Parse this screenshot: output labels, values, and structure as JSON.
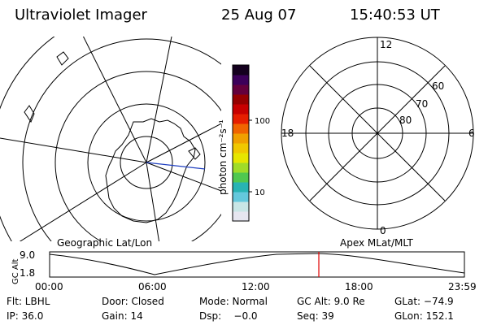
{
  "header": {
    "title": "Ultraviolet Imager",
    "date": "25 Aug 07",
    "time": "15:40:53 UT"
  },
  "colorbar": {
    "unit_label": "photon cm⁻²s⁻¹",
    "tick_high": "100",
    "tick_low": "10",
    "colors": [
      "#e6e6f0",
      "#c8e6e6",
      "#64c8dc",
      "#28b4b4",
      "#50c850",
      "#a0dc28",
      "#e6e600",
      "#f0c800",
      "#f0a000",
      "#f06400",
      "#e61e00",
      "#c80000",
      "#960000",
      "#64003c",
      "#3c005a",
      "#14001e"
    ]
  },
  "polar_plot": {
    "lat_labels": [
      "60",
      "70",
      "80"
    ],
    "mlt_labels": {
      "top": "12",
      "left": "18",
      "right": "6",
      "bottom": "0"
    }
  },
  "left_panel_label": "Geographic Lat/Lon",
  "right_panel_label": "Apex MLat/MLT",
  "altitude_plot": {
    "ylabel": "GC Alt",
    "y_ticks": [
      "9.0",
      "1.8"
    ],
    "x_ticks": [
      "00:00",
      "06:00",
      "12:00",
      "18:00",
      "23:59"
    ],
    "marker_color": "#e00000"
  },
  "info": {
    "row1": [
      "Flt: LBHL",
      "Door: Closed",
      "Mode: Normal",
      "GC Alt: 9.0 Re",
      "GLat: −74.9"
    ],
    "row2": [
      "IP: 36.0",
      "Gain: 14",
      "Dsp:    −0.0",
      "Seq: 39",
      "GLon: 152.1"
    ]
  }
}
